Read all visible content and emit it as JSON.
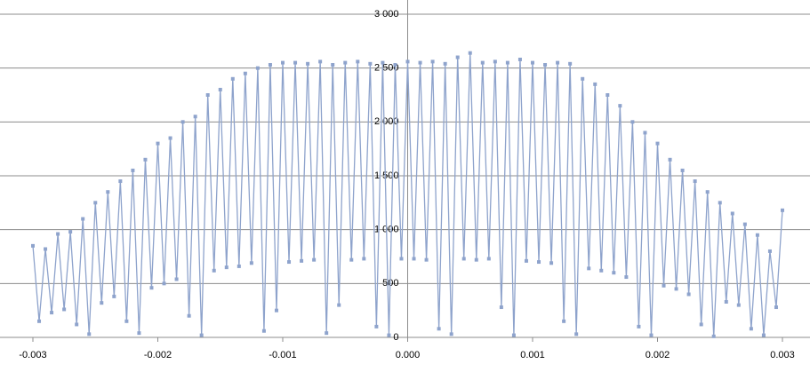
{
  "chart_data": {
    "type": "scatter_line",
    "color": "#8ea3cc",
    "grid": true,
    "xlim": [
      -0.003,
      0.003
    ],
    "ylim": [
      0,
      3000
    ],
    "xticks": [
      -0.003,
      -0.002,
      -0.001,
      {
        "value": 0,
        "label": "0.000"
      },
      0.001,
      0.002,
      0.003
    ],
    "yticks": [
      0,
      500,
      {
        "value": 1000,
        "label": "1 000"
      },
      {
        "value": 1500,
        "label": "1 500"
      },
      {
        "value": 2000,
        "label": "2 000"
      },
      {
        "value": 2500,
        "label": "2 500"
      },
      {
        "value": 3000,
        "label": "3 000"
      }
    ],
    "series": [
      {
        "color": "#8ea3cc",
        "x": [
          -0.003,
          -0.00295,
          -0.0029,
          -0.00285,
          -0.0028,
          -0.00275,
          -0.0027,
          -0.00265,
          -0.0026,
          -0.00255,
          -0.0025,
          -0.00245,
          -0.0024,
          -0.00235,
          -0.0023,
          -0.00225,
          -0.0022,
          -0.00215,
          -0.0021,
          -0.00205,
          -0.002,
          -0.00195,
          -0.0019,
          -0.00185,
          -0.0018,
          -0.00175,
          -0.0017,
          -0.00165,
          -0.0016,
          -0.00155,
          -0.0015,
          -0.00145,
          -0.0014,
          -0.00135,
          -0.0013,
          -0.00125,
          -0.0012,
          -0.00115,
          -0.0011,
          -0.00105,
          -0.001,
          -0.00095,
          -0.0009,
          -0.00085,
          -0.0008,
          -0.00075,
          -0.0007,
          -0.00065,
          -0.0006,
          -0.00055,
          -0.0005,
          -0.00045,
          -0.0004,
          -0.00035,
          -0.0003,
          -0.00025,
          -0.0002,
          -0.00015,
          -0.0001,
          -5e-05,
          0,
          5e-05,
          0.0001,
          0.00015,
          0.0002,
          0.00025,
          0.0003,
          0.00035,
          0.0004,
          0.00045,
          0.0005,
          0.00055,
          0.0006,
          0.00065,
          0.0007,
          0.00075,
          0.0008,
          0.00085,
          0.0009,
          0.00095,
          0.001,
          0.00105,
          0.0011,
          0.00115,
          0.0012,
          0.00125,
          0.0013,
          0.00135,
          0.0014,
          0.00145,
          0.0015,
          0.00155,
          0.0016,
          0.00165,
          0.0017,
          0.00175,
          0.0018,
          0.00185,
          0.0019,
          0.00195,
          0.002,
          0.00205,
          0.0021,
          0.00215,
          0.0022,
          0.00225,
          0.0023,
          0.00235,
          0.0024,
          0.00245,
          0.0025,
          0.00255,
          0.0026,
          0.00265,
          0.0027,
          0.00275,
          0.0028,
          0.00285,
          0.0029,
          0.00295,
          0.003
        ],
        "values": [
          850,
          150,
          820,
          230,
          960,
          260,
          980,
          120,
          1100,
          30,
          1250,
          320,
          1350,
          380,
          1450,
          150,
          1550,
          40,
          1650,
          460,
          1800,
          500,
          1850,
          540,
          2000,
          200,
          2050,
          20,
          2250,
          620,
          2300,
          650,
          2400,
          660,
          2450,
          690,
          2500,
          60,
          2530,
          250,
          2550,
          700,
          2550,
          710,
          2540,
          720,
          2560,
          40,
          2530,
          300,
          2550,
          720,
          2560,
          730,
          2540,
          100,
          2550,
          20,
          2530,
          730,
          2560,
          730,
          2550,
          720,
          2560,
          80,
          2540,
          30,
          2600,
          730,
          2640,
          720,
          2550,
          730,
          2560,
          280,
          2550,
          20,
          2580,
          710,
          2550,
          700,
          2530,
          690,
          2550,
          150,
          2540,
          30,
          2400,
          640,
          2350,
          620,
          2250,
          600,
          2150,
          560,
          2000,
          100,
          1900,
          20,
          1800,
          480,
          1650,
          450,
          1550,
          400,
          1450,
          120,
          1350,
          10,
          1250,
          330,
          1150,
          300,
          1050,
          80,
          950,
          20,
          800,
          280,
          1180
        ]
      }
    ]
  }
}
